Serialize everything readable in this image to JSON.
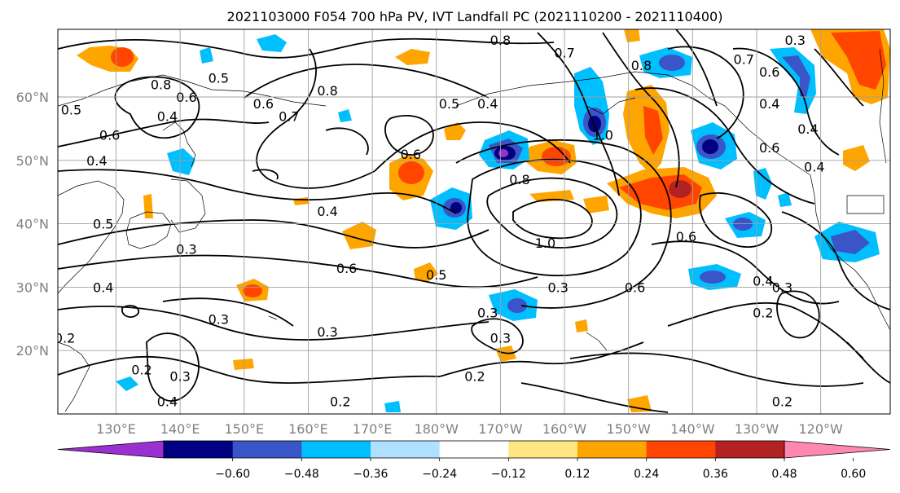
{
  "title": "2021103000 F054 700 hPa PV, IVT Landfall PC (2021110200 - 2021110400)",
  "lon_labels": [
    "130°E",
    "140°E",
    "150°E",
    "160°E",
    "170°E",
    "180°W",
    "170°W",
    "160°W",
    "150°W",
    "140°W",
    "130°W",
    "120°W"
  ],
  "lat_labels": [
    "60°N",
    "50°N",
    "40°N",
    "30°N",
    "20°N"
  ],
  "colorbar": {
    "tick_labels": [
      "−0.60",
      "−0.48",
      "−0.36",
      "−0.24",
      "−0.12",
      "0.12",
      "0.24",
      "0.36",
      "0.48",
      "0.60"
    ],
    "colors": [
      "#9b30d0",
      "#000080",
      "#3a55c8",
      "#00bfff",
      "#b0e0ff",
      "#ffffff",
      "#ffe680",
      "#ffa500",
      "#ff4500",
      "#b22222",
      "#ff88b0"
    ]
  },
  "contour_labels": [
    {
      "text": "0.5",
      "lon": 146,
      "lat": 63
    },
    {
      "text": "0.8",
      "lon": 137,
      "lat": 62
    },
    {
      "text": "0.6",
      "lon": 141,
      "lat": 60
    },
    {
      "text": "0.4",
      "lon": 138,
      "lat": 57
    },
    {
      "text": "0.6",
      "lon": 129,
      "lat": 54
    },
    {
      "text": "0.4",
      "lon": 127,
      "lat": 50
    },
    {
      "text": "0.5",
      "lon": 123,
      "lat": 58
    },
    {
      "text": "0.6",
      "lon": 153,
      "lat": 59
    },
    {
      "text": "0.7",
      "lon": 157,
      "lat": 57
    },
    {
      "text": "0.8",
      "lon": 163,
      "lat": 61
    },
    {
      "text": "0.5",
      "lon": 182,
      "lat": 59
    },
    {
      "text": "0.6",
      "lon": 176,
      "lat": 51
    },
    {
      "text": "0.4",
      "lon": 163,
      "lat": 42
    },
    {
      "text": "0.5",
      "lon": 128,
      "lat": 40
    },
    {
      "text": "0.3",
      "lon": 141,
      "lat": 36
    },
    {
      "text": "0.6",
      "lon": 166,
      "lat": 33
    },
    {
      "text": "0.4",
      "lon": 128,
      "lat": 30
    },
    {
      "text": "0.3",
      "lon": 146,
      "lat": 25
    },
    {
      "text": "0.3",
      "lon": 163,
      "lat": 23
    },
    {
      "text": "0.2",
      "lon": 122,
      "lat": 22
    },
    {
      "text": "0.2",
      "lon": 134,
      "lat": 17
    },
    {
      "text": "0.3",
      "lon": 140,
      "lat": 16
    },
    {
      "text": "0.4",
      "lon": 138,
      "lat": 12
    },
    {
      "text": "0.2",
      "lon": 165,
      "lat": 12
    },
    {
      "text": "0.5",
      "lon": 180,
      "lat": 32
    },
    {
      "text": "0.3",
      "lon": 188,
      "lat": 26
    },
    {
      "text": "0.3",
      "lon": 190,
      "lat": 22
    },
    {
      "text": "0.2",
      "lon": 186,
      "lat": 16
    },
    {
      "text": "0.3",
      "lon": 199,
      "lat": 30
    },
    {
      "text": "0.6",
      "lon": 211,
      "lat": 30
    },
    {
      "text": "0.8",
      "lon": 193,
      "lat": 47
    },
    {
      "text": "1.0",
      "lon": 197,
      "lat": 37
    },
    {
      "text": "1.0",
      "lon": 206,
      "lat": 54
    },
    {
      "text": "0.8",
      "lon": 190,
      "lat": 69
    },
    {
      "text": "0.4",
      "lon": 188,
      "lat": 59
    },
    {
      "text": "0.7",
      "lon": 200,
      "lat": 67
    },
    {
      "text": "0.8",
      "lon": 212,
      "lat": 65
    },
    {
      "text": "0.6",
      "lon": 219,
      "lat": 38
    },
    {
      "text": "0.4",
      "lon": 232,
      "lat": 59
    },
    {
      "text": "0.7",
      "lon": 228,
      "lat": 66
    },
    {
      "text": "0.6",
      "lon": 232,
      "lat": 64
    },
    {
      "text": "0.6",
      "lon": 232,
      "lat": 52
    },
    {
      "text": "0.4",
      "lon": 239,
      "lat": 49
    },
    {
      "text": "0.4",
      "lon": 238,
      "lat": 55
    },
    {
      "text": "0.4",
      "lon": 231,
      "lat": 31
    },
    {
      "text": "0.3",
      "lon": 234,
      "lat": 30
    },
    {
      "text": "0.2",
      "lon": 231,
      "lat": 26
    },
    {
      "text": "0.2",
      "lon": 234,
      "lat": 12
    },
    {
      "text": "0.3",
      "lon": 236,
      "lat": 69
    }
  ]
}
